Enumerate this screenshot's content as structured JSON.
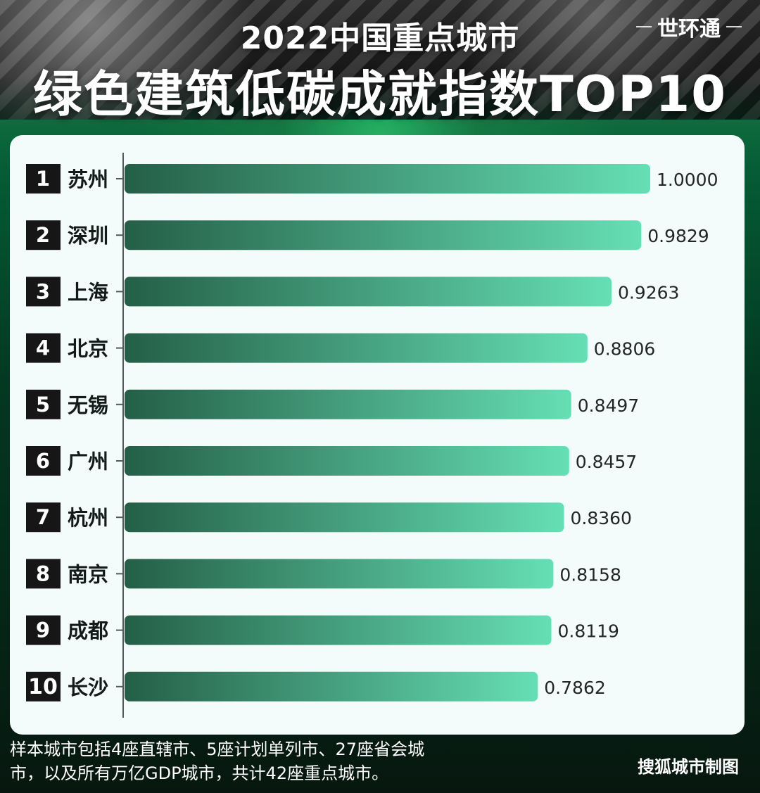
{
  "header": {
    "subtitle": "2022中国重点城市",
    "title": "绿色建筑低碳成就指数TOP10",
    "brand": "世环通"
  },
  "footer": {
    "note_line_1": "样本城市包括4座直辖市、5座计划单列市、27座省会城",
    "note_line_2": "市，以及所有万亿GDP城市，共计42座重点城市。",
    "credit": "搜狐城市制图"
  },
  "chart_data": {
    "type": "bar",
    "orientation": "horizontal",
    "ranks": [
      "1",
      "2",
      "3",
      "4",
      "5",
      "6",
      "7",
      "8",
      "9",
      "10"
    ],
    "categories": [
      "苏州",
      "深圳",
      "上海",
      "北京",
      "无锡",
      "广州",
      "杭州",
      "南京",
      "成都",
      "长沙"
    ],
    "values": [
      1.0,
      0.9829,
      0.9263,
      0.8806,
      0.8497,
      0.8457,
      0.836,
      0.8158,
      0.8119,
      0.7862
    ],
    "value_labels": [
      "1.0000",
      "0.9829",
      "0.9263",
      "0.8806",
      "0.8497",
      "0.8457",
      "0.8360",
      "0.8158",
      "0.8119",
      "0.7862"
    ],
    "title": "绿色建筑低碳成就指数TOP10",
    "subtitle": "2022中国重点城市",
    "grid": false,
    "legend": "none",
    "colors": {
      "bar_start": "#245f47",
      "bar_end": "#66dfb5",
      "rank_badge": "#161616",
      "panel_background": "#f3fcfa"
    }
  }
}
